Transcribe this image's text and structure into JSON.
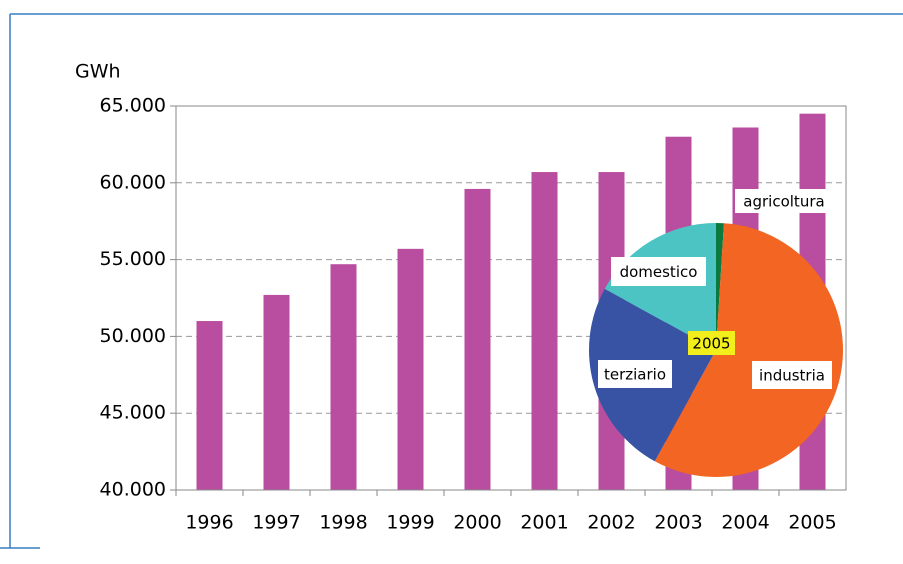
{
  "chart_data": [
    {
      "type": "bar",
      "y_label": "GWh",
      "categories": [
        "1996",
        "1997",
        "1998",
        "1999",
        "2000",
        "2001",
        "2002",
        "2003",
        "2004",
        "2005"
      ],
      "values": [
        51000,
        52700,
        54700,
        55700,
        59600,
        60700,
        60700,
        63000,
        63600,
        64500
      ],
      "color": "#b94ea0",
      "ylim": [
        40000,
        65000
      ],
      "yticks": [
        {
          "value": 40000,
          "label": "40.000"
        },
        {
          "value": 45000,
          "label": "45.000"
        },
        {
          "value": 50000,
          "label": "50.000"
        },
        {
          "value": 55000,
          "label": "55.000"
        },
        {
          "value": 60000,
          "label": "60.000"
        },
        {
          "value": 65000,
          "label": "65.000"
        }
      ],
      "grid": true
    },
    {
      "type": "pie",
      "center_label": "2005",
      "categories": [
        "agricoltura",
        "industria",
        "terziario",
        "domestico"
      ],
      "values": [
        1,
        57,
        25,
        17
      ],
      "colors": [
        "#0b7a3e",
        "#f26522",
        "#3953a4",
        "#4cc4c4"
      ]
    }
  ]
}
